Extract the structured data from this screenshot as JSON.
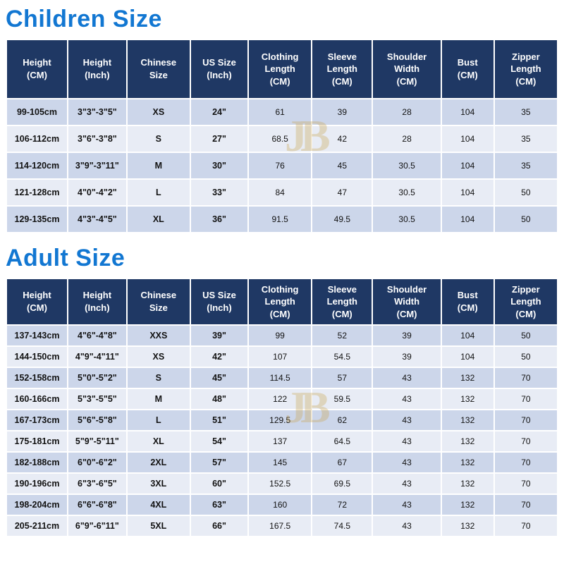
{
  "colors": {
    "title_blue": "#1277d2",
    "header_bg": "#1f3864",
    "header_text": "#ffffff",
    "row_odd": "#ccd6ea",
    "row_even": "#e8ecf5",
    "watermark_gold": "#c9a24a"
  },
  "watermark": {
    "monogram": "JB"
  },
  "chart_data": [
    {
      "type": "table",
      "title": "Children Size",
      "columns": [
        "Height\n(CM)",
        "Height\n(Inch)",
        "Chinese\nSize",
        "US Size\n(Inch)",
        "Clothing\nLength\n(CM)",
        "Sleeve\nLength\n(CM)",
        "Shoulder\nWidth\n(CM)",
        "Bust\n(CM)",
        "Zipper\nLength\n(CM)"
      ],
      "rows": [
        [
          "99-105cm",
          "3\"3\"-3\"5\"",
          "XS",
          "24\"",
          "61",
          "39",
          "28",
          "104",
          "35"
        ],
        [
          "106-112cm",
          "3\"6\"-3\"8\"",
          "S",
          "27\"",
          "68.5",
          "42",
          "28",
          "104",
          "35"
        ],
        [
          "114-120cm",
          "3\"9\"-3\"11\"",
          "M",
          "30\"",
          "76",
          "45",
          "30.5",
          "104",
          "35"
        ],
        [
          "121-128cm",
          "4\"0\"-4\"2\"",
          "L",
          "33\"",
          "84",
          "47",
          "30.5",
          "104",
          "50"
        ],
        [
          "129-135cm",
          "4\"3\"-4\"5\"",
          "XL",
          "36\"",
          "91.5",
          "49.5",
          "30.5",
          "104",
          "50"
        ]
      ]
    },
    {
      "type": "table",
      "title": "Adult Size",
      "columns": [
        "Height\n(CM)",
        "Height\n(Inch)",
        "Chinese\nSize",
        "US Size\n(Inch)",
        "Clothing\nLength\n(CM)",
        "Sleeve\nLength\n(CM)",
        "Shoulder\nWidth\n(CM)",
        "Bust\n(CM)",
        "Zipper\nLength\n(CM)"
      ],
      "rows": [
        [
          "137-143cm",
          "4\"6\"-4\"8\"",
          "XXS",
          "39\"",
          "99",
          "52",
          "39",
          "104",
          "50"
        ],
        [
          "144-150cm",
          "4\"9\"-4\"11\"",
          "XS",
          "42\"",
          "107",
          "54.5",
          "39",
          "104",
          "50"
        ],
        [
          "152-158cm",
          "5\"0\"-5\"2\"",
          "S",
          "45\"",
          "114.5",
          "57",
          "43",
          "132",
          "70"
        ],
        [
          "160-166cm",
          "5\"3\"-5\"5\"",
          "M",
          "48\"",
          "122",
          "59.5",
          "43",
          "132",
          "70"
        ],
        [
          "167-173cm",
          "5\"6\"-5\"8\"",
          "L",
          "51\"",
          "129.5",
          "62",
          "43",
          "132",
          "70"
        ],
        [
          "175-181cm",
          "5\"9\"-5\"11\"",
          "XL",
          "54\"",
          "137",
          "64.5",
          "43",
          "132",
          "70"
        ],
        [
          "182-188cm",
          "6\"0\"-6\"2\"",
          "2XL",
          "57\"",
          "145",
          "67",
          "43",
          "132",
          "70"
        ],
        [
          "190-196cm",
          "6\"3\"-6\"5\"",
          "3XL",
          "60\"",
          "152.5",
          "69.5",
          "43",
          "132",
          "70"
        ],
        [
          "198-204cm",
          "6\"6\"-6\"8\"",
          "4XL",
          "63\"",
          "160",
          "72",
          "43",
          "132",
          "70"
        ],
        [
          "205-211cm",
          "6\"9\"-6\"11\"",
          "5XL",
          "66\"",
          "167.5",
          "74.5",
          "43",
          "132",
          "70"
        ]
      ]
    }
  ]
}
